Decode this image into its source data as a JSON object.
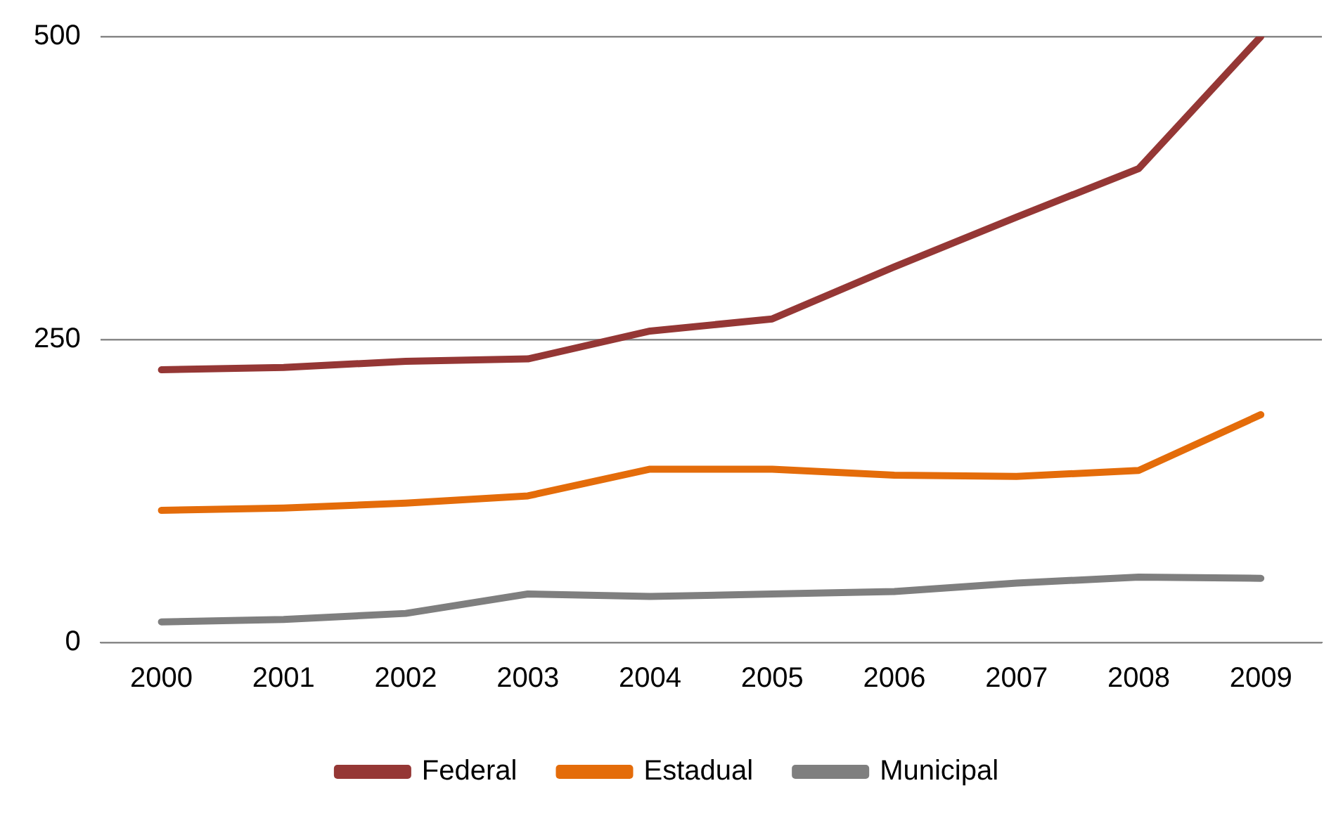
{
  "chart_data": {
    "type": "line",
    "categories": [
      "2000",
      "2001",
      "2002",
      "2003",
      "2004",
      "2005",
      "2006",
      "2007",
      "2008",
      "2009"
    ],
    "series": [
      {
        "name": "Federal",
        "color": "#953735",
        "values": [
          225,
          227,
          232,
          234,
          257,
          267,
          310,
          351,
          391,
          500
        ]
      },
      {
        "name": "Estadual",
        "color": "#e46c0a",
        "values": [
          109,
          111,
          115,
          121,
          143,
          143,
          138,
          137,
          142,
          188
        ]
      },
      {
        "name": "Municipal",
        "color": "#7f7f7f",
        "values": [
          17,
          19,
          24,
          40,
          38,
          40,
          42,
          49,
          54,
          53
        ]
      }
    ],
    "ylim": [
      0,
      500
    ],
    "yticks": [
      0,
      250,
      500
    ],
    "grid": "y",
    "legend": "bottom",
    "marker": "none",
    "line_style": "solid"
  }
}
